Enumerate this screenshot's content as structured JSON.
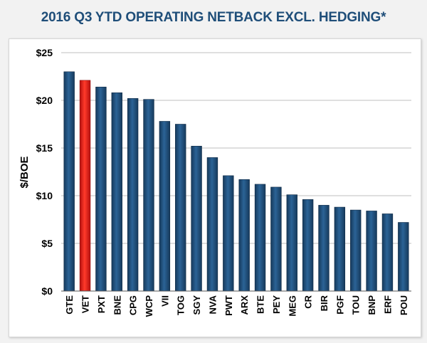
{
  "chart_data": {
    "type": "bar",
    "title": "2016 Q3 YTD OPERATING NETBACK EXCL. HEDGING*",
    "ylabel": "$/BOE",
    "xlabel": "",
    "ylim": [
      0,
      25
    ],
    "yticks": [
      0,
      5,
      10,
      15,
      20,
      25
    ],
    "ytick_labels": [
      "$0",
      "$5",
      "$10",
      "$15",
      "$20",
      "$25"
    ],
    "grid": true,
    "legend": "none",
    "categories": [
      "GTE",
      "VET",
      "PXT",
      "BNE",
      "CPG",
      "WCP",
      "VII",
      "TOG",
      "SGY",
      "NVA",
      "PWT",
      "ARX",
      "BTE",
      "PEY",
      "MEG",
      "CR",
      "BIR",
      "PGF",
      "TOU",
      "BNP",
      "ERF",
      "POU"
    ],
    "values": [
      23.0,
      22.1,
      21.4,
      20.8,
      20.2,
      20.1,
      17.8,
      17.5,
      15.2,
      14.0,
      12.1,
      11.7,
      11.2,
      10.9,
      10.1,
      9.6,
      9.0,
      8.8,
      8.5,
      8.4,
      8.1,
      7.2
    ],
    "highlight": "VET",
    "colors": {
      "bar": "#1f4e79",
      "highlight": "#e21a1a",
      "title": "#1f4e79",
      "grid": "#bfbfbf"
    }
  }
}
